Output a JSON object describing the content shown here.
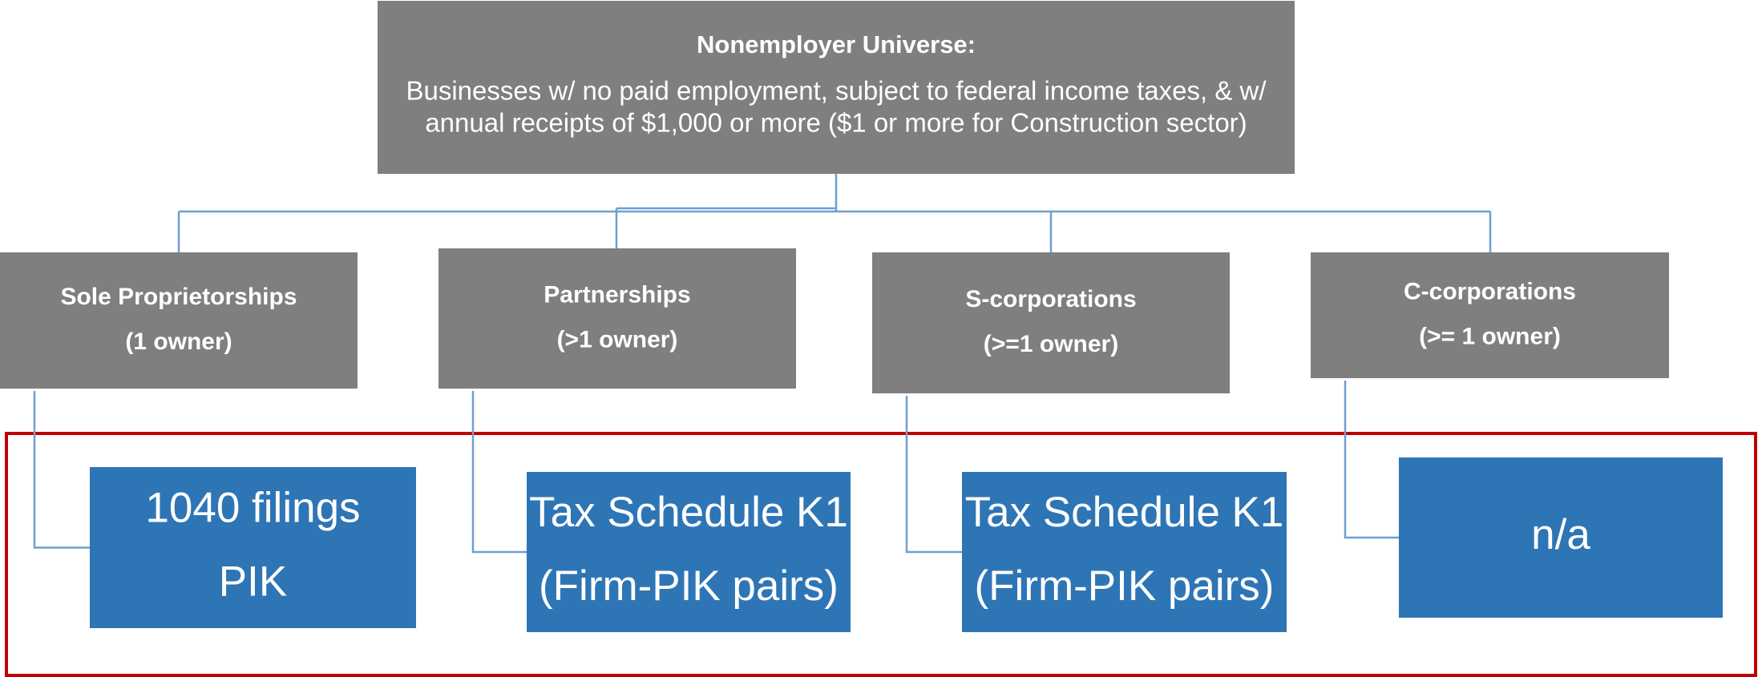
{
  "root": {
    "title": "Nonemployer Universe:",
    "lines": [
      "Businesses w/ no paid employment, subject to federal income taxes, & w/",
      "annual receipts of $1,000 or more ($1 or more for Construction sector)"
    ]
  },
  "categories": [
    {
      "name": "Sole Proprietorships",
      "owners": "(1 owner)",
      "leaf": [
        "1040 filings",
        "PIK"
      ]
    },
    {
      "name": "Partnerships",
      "owners": "(>1 owner)",
      "leaf": [
        "Tax Schedule K1",
        "(Firm-PIK pairs)"
      ]
    },
    {
      "name": "S-corporations",
      "owners": "(>=1 owner)",
      "leaf": [
        "Tax Schedule K1",
        "(Firm-PIK pairs)"
      ]
    },
    {
      "name": "C-corporations",
      "owners": "(>= 1 owner)",
      "leaf": [
        "n/a"
      ]
    }
  ]
}
